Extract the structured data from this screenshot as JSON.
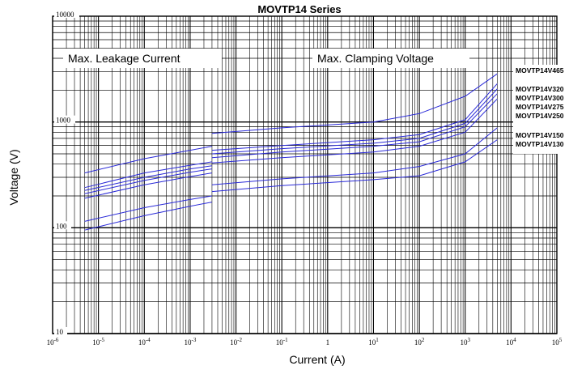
{
  "chart_data": {
    "type": "line",
    "title": "MOVTP14 Series",
    "xlabel": "Current (A)",
    "ylabel": "Voltage  (V)",
    "x_scale": "log",
    "y_scale": "log",
    "xlim": [
      1e-06,
      100000
    ],
    "ylim": [
      10,
      10000
    ],
    "grid": true,
    "x_ticks": [
      {
        "value": 1e-06,
        "label": "10-6"
      },
      {
        "value": 1e-05,
        "label": "10-5"
      },
      {
        "value": 0.0001,
        "label": "10-4"
      },
      {
        "value": 0.001,
        "label": "10-3"
      },
      {
        "value": 0.01,
        "label": "10-2"
      },
      {
        "value": 0.1,
        "label": "10-1"
      },
      {
        "value": 1,
        "label": "1"
      },
      {
        "value": 10,
        "label": "101"
      },
      {
        "value": 100,
        "label": "102"
      },
      {
        "value": 1000,
        "label": "103"
      },
      {
        "value": 10000,
        "label": "104"
      },
      {
        "value": 100000,
        "label": "105"
      }
    ],
    "y_ticks": [
      {
        "value": 10,
        "label": "10"
      },
      {
        "value": 100,
        "label": "100"
      },
      {
        "value": 1000,
        "label": "1000"
      },
      {
        "value": 10000,
        "label": "10000"
      }
    ],
    "regions": [
      {
        "label": "Max. Leakage Current",
        "x_range": [
          5e-06,
          0.003
        ]
      },
      {
        "label": "Max.  Clamping  Voltage",
        "x_range": [
          0.003,
          5000
        ]
      }
    ],
    "series": [
      {
        "name": "MOVTP14V465",
        "leakage": {
          "x": [
            5e-06,
            0.0001,
            0.001,
            0.003
          ],
          "y": [
            330,
            450,
            540,
            590
          ]
        },
        "clamping": {
          "x": [
            0.003,
            0.1,
            10,
            100,
            1000,
            5000
          ],
          "y": [
            780,
            880,
            1000,
            1200,
            1750,
            2850
          ]
        }
      },
      {
        "name": "MOVTP14V320",
        "leakage": {
          "x": [
            5e-06,
            0.0001,
            0.001,
            0.003
          ],
          "y": [
            240,
            330,
            390,
            420
          ]
        },
        "clamping": {
          "x": [
            0.003,
            0.1,
            10,
            100,
            1000,
            5000
          ],
          "y": [
            540,
            600,
            680,
            760,
            1050,
            2300
          ]
        }
      },
      {
        "name": "MOVTP14V300",
        "leakage": {
          "x": [
            5e-06,
            0.0001,
            0.001,
            0.003
          ],
          "y": [
            225,
            300,
            360,
            385
          ]
        },
        "clamping": {
          "x": [
            0.003,
            0.1,
            10,
            100,
            1000,
            5000
          ],
          "y": [
            500,
            560,
            630,
            700,
            970,
            2050
          ]
        }
      },
      {
        "name": "MOVTP14V275",
        "leakage": {
          "x": [
            5e-06,
            0.0001,
            0.001,
            0.003
          ],
          "y": [
            210,
            280,
            335,
            360
          ]
        },
        "clamping": {
          "x": [
            0.003,
            0.1,
            10,
            100,
            1000,
            5000
          ],
          "y": [
            460,
            520,
            590,
            650,
            900,
            1850
          ]
        }
      },
      {
        "name": "MOVTP14V250",
        "leakage": {
          "x": [
            5e-06,
            0.0001,
            0.001,
            0.003
          ],
          "y": [
            190,
            255,
            305,
            330
          ]
        },
        "clamping": {
          "x": [
            0.003,
            0.1,
            10,
            100,
            1000,
            5000
          ],
          "y": [
            410,
            460,
            520,
            590,
            800,
            1650
          ]
        }
      },
      {
        "name": "MOVTP14V150",
        "leakage": {
          "x": [
            5e-06,
            0.0001,
            0.001,
            0.003
          ],
          "y": [
            115,
            155,
            185,
            200
          ]
        },
        "clamping": {
          "x": [
            0.003,
            0.1,
            10,
            100,
            1000,
            5000
          ],
          "y": [
            255,
            290,
            330,
            380,
            500,
            880
          ]
        }
      },
      {
        "name": "MOVTP14V130",
        "leakage": {
          "x": [
            5e-06,
            0.0001,
            0.001,
            0.003
          ],
          "y": [
            95,
            130,
            160,
            175
          ]
        },
        "clamping": {
          "x": [
            0.003,
            0.1,
            10,
            100,
            1000,
            5000
          ],
          "y": [
            220,
            250,
            285,
            310,
            420,
            680
          ]
        }
      }
    ],
    "colors": {
      "series": "#2a2ad8",
      "grid": "#000000",
      "background": "#ffffff"
    }
  }
}
